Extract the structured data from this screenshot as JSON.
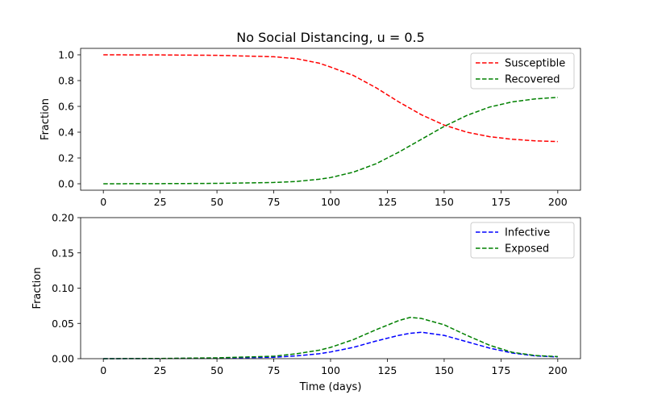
{
  "figure": {
    "title": "No Social Distancing, u = 0.5"
  },
  "chart_data": [
    {
      "type": "line",
      "title": "No Social Distancing, u = 0.5",
      "xlabel": "",
      "ylabel": "Fraction",
      "xlim": [
        -10,
        210
      ],
      "ylim": [
        -0.05,
        1.05
      ],
      "xticks": [
        "0",
        "25",
        "50",
        "75",
        "100",
        "125",
        "150",
        "175",
        "200"
      ],
      "yticks": [
        "0.0",
        "0.2",
        "0.4",
        "0.6",
        "0.8",
        "1.0"
      ],
      "grid": false,
      "legend": "top-right",
      "x": [
        0,
        25,
        50,
        75,
        85,
        95,
        100,
        110,
        120,
        130,
        140,
        150,
        160,
        170,
        180,
        190,
        200
      ],
      "series": [
        {
          "name": "Susceptible",
          "color": "#ff0000",
          "style": "dashed",
          "values": [
            1.0,
            0.999,
            0.996,
            0.985,
            0.97,
            0.935,
            0.905,
            0.84,
            0.745,
            0.635,
            0.535,
            0.455,
            0.4,
            0.365,
            0.345,
            0.333,
            0.327
          ]
        },
        {
          "name": "Recovered",
          "color": "#008000",
          "style": "dashed",
          "values": [
            0.0,
            0.001,
            0.003,
            0.01,
            0.018,
            0.035,
            0.048,
            0.09,
            0.155,
            0.245,
            0.345,
            0.445,
            0.53,
            0.595,
            0.635,
            0.658,
            0.67
          ]
        }
      ]
    },
    {
      "type": "line",
      "xlabel": "Time (days)",
      "ylabel": "Fraction",
      "xlim": [
        -10,
        210
      ],
      "ylim": [
        0,
        0.2
      ],
      "xticks": [
        "0",
        "25",
        "50",
        "75",
        "100",
        "125",
        "150",
        "175",
        "200"
      ],
      "yticks": [
        "0.00",
        "0.05",
        "0.10",
        "0.15",
        "0.20"
      ],
      "grid": false,
      "legend": "top-right",
      "x": [
        0,
        25,
        50,
        75,
        85,
        95,
        100,
        110,
        120,
        130,
        135,
        140,
        150,
        160,
        170,
        180,
        190,
        200
      ],
      "series": [
        {
          "name": "Infective",
          "color": "#0000ff",
          "style": "dashed",
          "values": [
            0.0,
            0.0002,
            0.0008,
            0.002,
            0.004,
            0.007,
            0.0095,
            0.016,
            0.025,
            0.033,
            0.036,
            0.0375,
            0.033,
            0.024,
            0.015,
            0.008,
            0.004,
            0.0025
          ]
        },
        {
          "name": "Exposed",
          "color": "#008000",
          "style": "dashed",
          "values": [
            0.0,
            0.0003,
            0.0012,
            0.0035,
            0.007,
            0.012,
            0.016,
            0.027,
            0.041,
            0.054,
            0.0585,
            0.057,
            0.048,
            0.033,
            0.019,
            0.009,
            0.0045,
            0.003
          ]
        }
      ]
    }
  ]
}
